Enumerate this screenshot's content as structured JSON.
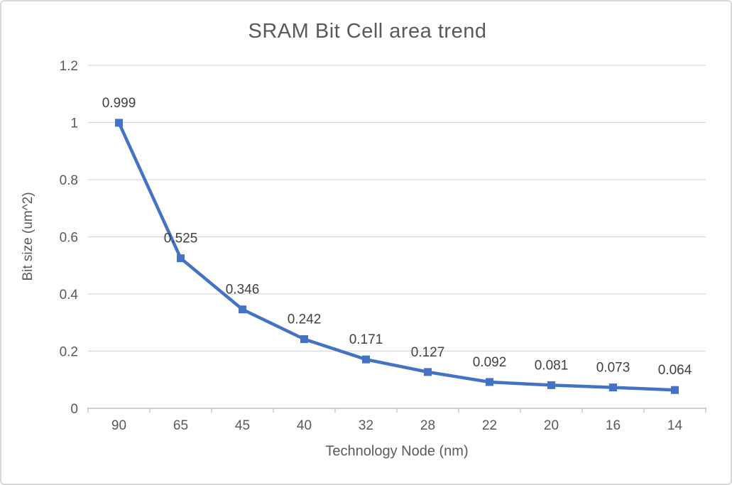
{
  "chart_data": {
    "type": "line",
    "title": "SRAM Bit Cell area trend",
    "xlabel": "Technology Node (nm)",
    "ylabel": "Bit size (um^2)",
    "categories": [
      "90",
      "65",
      "45",
      "40",
      "32",
      "28",
      "22",
      "20",
      "16",
      "14"
    ],
    "values": [
      0.999,
      0.525,
      0.346,
      0.242,
      0.171,
      0.127,
      0.092,
      0.081,
      0.073,
      0.064
    ],
    "data_labels": [
      "0.999",
      "0.525",
      "0.346",
      "0.242",
      "0.171",
      "0.127",
      "0.092",
      "0.081",
      "0.073",
      "0.064"
    ],
    "yticks": [
      0,
      0.2,
      0.4,
      0.6,
      0.8,
      1,
      1.2
    ],
    "ylim": [
      0,
      1.2
    ],
    "grid": "horizontal",
    "legend": "none",
    "marker": "square",
    "colors": {
      "series": "#4472C4",
      "gridline": "#D9D9D9",
      "axis_line": "#BFBFBF",
      "axis_text": "#595959",
      "label_text": "#404040",
      "title_text": "#595959"
    }
  }
}
